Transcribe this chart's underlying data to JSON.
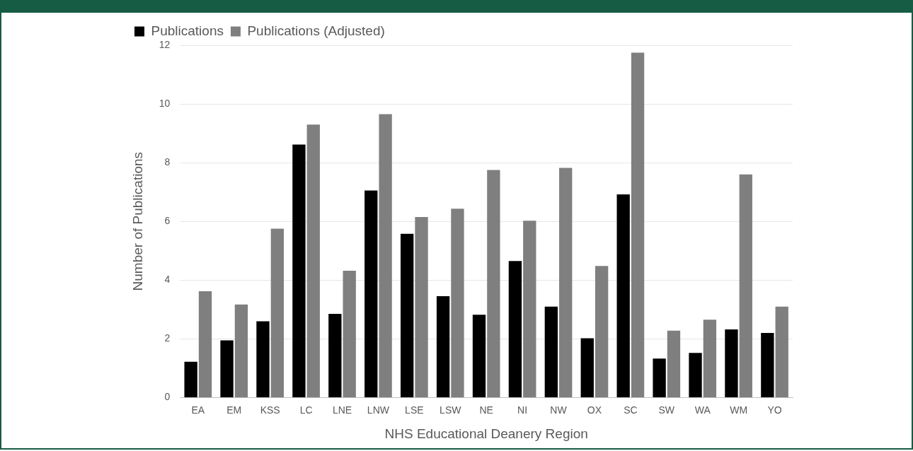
{
  "chart_data": {
    "type": "bar",
    "xlabel": "NHS Educational Deanery Region",
    "ylabel": "Number of Publications",
    "categories": [
      "EA",
      "EM",
      "KSS",
      "LC",
      "LNE",
      "LNW",
      "LSE",
      "LSW",
      "NE",
      "NI",
      "NW",
      "OX",
      "SC",
      "SW",
      "WA",
      "WM",
      "YO"
    ],
    "series": [
      {
        "name": "Publications",
        "color": "#000000",
        "values": [
          1.22,
          1.95,
          2.6,
          8.62,
          2.85,
          7.05,
          5.58,
          3.45,
          2.82,
          4.65,
          3.1,
          2.02,
          6.92,
          1.33,
          1.52,
          2.32,
          2.2
        ]
      },
      {
        "name": "Publications (Adjusted)",
        "color": "#7f7f7f",
        "values": [
          3.62,
          3.17,
          5.75,
          9.3,
          4.32,
          9.65,
          6.15,
          6.43,
          7.75,
          6.02,
          7.82,
          4.48,
          11.75,
          2.28,
          2.65,
          7.6,
          3.1
        ]
      }
    ],
    "ylim": [
      0,
      12
    ],
    "yticks": [
      0,
      2,
      4,
      6,
      8,
      10,
      12
    ],
    "grid": "y",
    "legend": "top left"
  }
}
